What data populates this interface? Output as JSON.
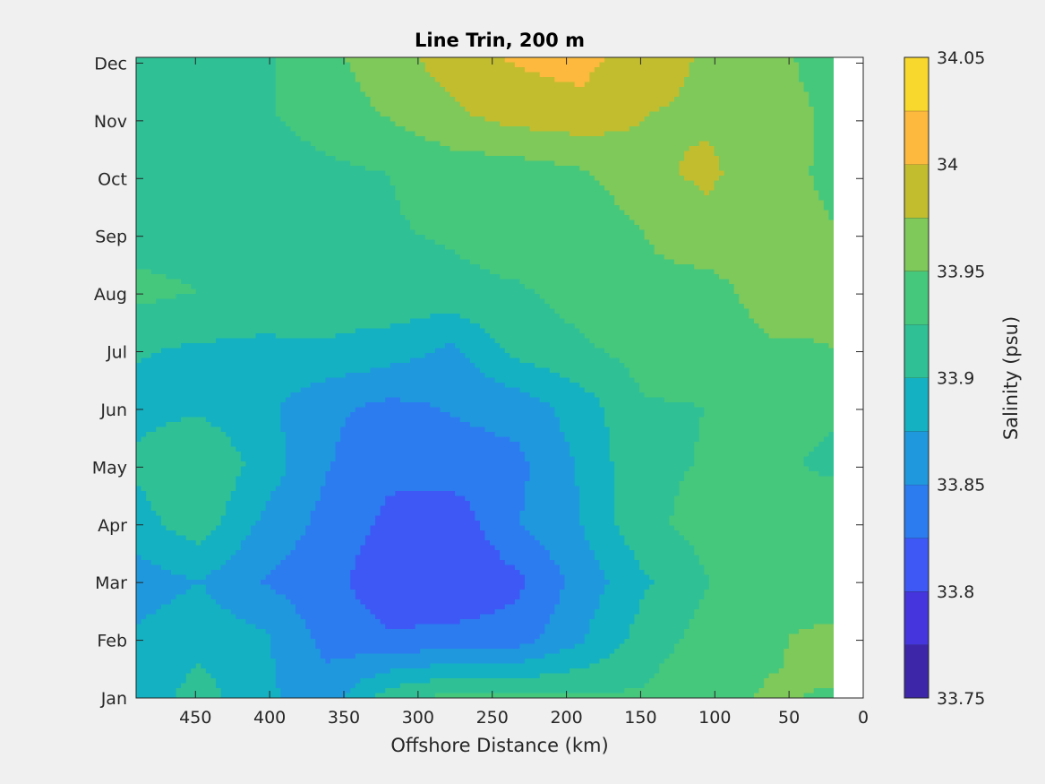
{
  "chart_data": {
    "type": "heatmap",
    "subtype": "filled-contour",
    "title": "Line Trin, 200 m",
    "xlabel": "Offshore Distance (km)",
    "ylabel": "",
    "x_reversed": true,
    "xlim": [
      0,
      490
    ],
    "x_ticks": [
      450,
      400,
      350,
      300,
      250,
      200,
      150,
      100,
      50,
      0
    ],
    "x_tick_labels": [
      "450",
      "400",
      "350",
      "300",
      "250",
      "200",
      "150",
      "100",
      "50",
      "0"
    ],
    "data_x_range": [
      20,
      490
    ],
    "y_categories": [
      "Jan",
      "Feb",
      "Mar",
      "Apr",
      "May",
      "Jun",
      "Jul",
      "Aug",
      "Sep",
      "Oct",
      "Nov",
      "Dec"
    ],
    "colorbar": {
      "label": "Salinity (psu)",
      "range": [
        33.75,
        34.05
      ],
      "step": 0.025,
      "tick_values": [
        33.75,
        33.8,
        33.85,
        33.9,
        33.95,
        34,
        34.05
      ],
      "tick_labels": [
        "33.75",
        "33.8",
        "33.85",
        "33.9",
        "33.95",
        "34",
        "34.05"
      ],
      "colors": [
        "#3e26a8",
        "#4435dc",
        "#3d58f5",
        "#2c7cf0",
        "#1f98dd",
        "#14b1c2",
        "#2fc096",
        "#46c87c",
        "#7ec95a",
        "#c2bd2f",
        "#fcb93d",
        "#f8d82c"
      ]
    },
    "grid": false,
    "values": [
      [
        33.882,
        33.912,
        33.88,
        33.862,
        33.915,
        33.935,
        33.932,
        33.928,
        33.929,
        33.946,
        33.952,
        33.948
      ],
      [
        33.88,
        33.892,
        33.88,
        33.842,
        33.828,
        33.835,
        33.838,
        33.872,
        33.911,
        33.935,
        33.947,
        33.958
      ],
      [
        33.862,
        33.875,
        33.849,
        33.833,
        33.809,
        33.801,
        33.819,
        33.859,
        33.896,
        33.924,
        33.943,
        33.932
      ],
      [
        33.89,
        33.915,
        33.87,
        33.842,
        33.819,
        33.808,
        33.849,
        33.874,
        33.919,
        33.933,
        33.945,
        33.941
      ],
      [
        33.904,
        33.925,
        33.89,
        33.852,
        33.831,
        33.839,
        33.843,
        33.878,
        33.921,
        33.926,
        33.93,
        33.92
      ],
      [
        33.893,
        33.895,
        33.881,
        33.855,
        33.844,
        33.852,
        33.86,
        33.887,
        33.923,
        33.925,
        33.93,
        33.929
      ],
      [
        33.902,
        33.897,
        33.894,
        33.898,
        33.888,
        33.871,
        33.91,
        33.921,
        33.935,
        33.936,
        33.947,
        33.95
      ],
      [
        33.933,
        33.925,
        33.92,
        33.912,
        33.919,
        33.918,
        33.922,
        33.935,
        33.944,
        33.94,
        33.962,
        33.953
      ],
      [
        33.912,
        33.91,
        33.909,
        33.911,
        33.923,
        33.928,
        33.941,
        33.927,
        33.95,
        33.967,
        33.963,
        33.951
      ],
      [
        33.904,
        33.908,
        33.911,
        33.919,
        33.925,
        33.935,
        33.936,
        33.945,
        33.97,
        33.979,
        33.962,
        33.943
      ],
      [
        33.923,
        33.915,
        33.922,
        33.937,
        33.952,
        33.97,
        33.985,
        33.99,
        33.975,
        33.972,
        33.969,
        33.942
      ],
      [
        33.918,
        33.914,
        33.921,
        33.943,
        33.965,
        33.988,
        34.003,
        34.01,
        33.985,
        33.972,
        33.962,
        33.93
      ]
    ]
  }
}
